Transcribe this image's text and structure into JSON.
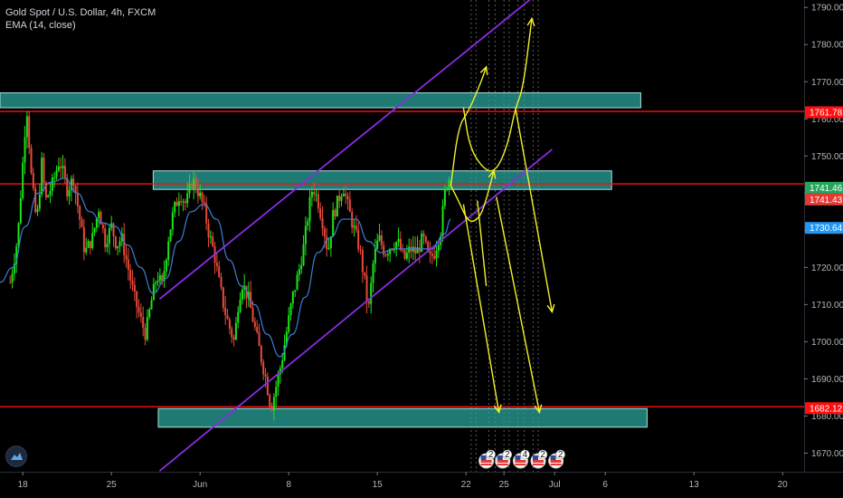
{
  "header": {
    "symbol": "Gold Spot / U.S. Dollar, 4h, FXCM",
    "indicator": "EMA (14, close)"
  },
  "colors": {
    "background": "#000000",
    "candle_up": "#19e619",
    "candle_down": "#e84a3a",
    "ema": "#3d7fd6",
    "level_line": "#ff0f0f",
    "zone_fill": "#2aa39b",
    "channel": "#8a2be2",
    "projection": "#f2f22a",
    "badge_green": "#26a65b",
    "badge_red": "#e53935",
    "badge_blue": "#2196f3"
  },
  "chart_data": {
    "type": "candlestick",
    "title": "Gold Spot / U.S. Dollar, 4h, FXCM",
    "indicator": "EMA (14, close)",
    "y_ticks": [
      1670,
      1680,
      1690,
      1700,
      1710,
      1720,
      1730,
      1740,
      1750,
      1760,
      1770,
      1780,
      1790
    ],
    "y_tick_labels": [
      "1670.00",
      "1680.00",
      "1690.00",
      "1700.00",
      "1710.00",
      "1720.00",
      "1730.00",
      "1740.00",
      "1750.00",
      "1760.00",
      "1770.00",
      "1780.00",
      "1790.00"
    ],
    "ylim": [
      1665,
      1792
    ],
    "x_ticks": [
      {
        "day": 18,
        "label": "18"
      },
      {
        "day": 25,
        "label": "25"
      },
      {
        "day": 32,
        "label": "Jun"
      },
      {
        "day": 39,
        "label": "8"
      },
      {
        "day": 46,
        "label": "15"
      },
      {
        "day": 53,
        "label": "22"
      },
      {
        "day": 56,
        "label": "25"
      },
      {
        "day": 60,
        "label": "Jul"
      },
      {
        "day": 64,
        "label": "6"
      },
      {
        "day": 71,
        "label": "13"
      },
      {
        "day": 78,
        "label": "20"
      }
    ],
    "xlim": [
      16.2,
      79.7
    ],
    "anchors": [
      [
        17.0,
        1716
      ],
      [
        17.6,
        1728
      ],
      [
        18.0,
        1748
      ],
      [
        18.3,
        1764
      ],
      [
        18.7,
        1743
      ],
      [
        19.1,
        1732
      ],
      [
        19.5,
        1748
      ],
      [
        19.8,
        1738
      ],
      [
        20.3,
        1742
      ],
      [
        20.9,
        1749
      ],
      [
        21.5,
        1741
      ],
      [
        22.0,
        1744
      ],
      [
        22.5,
        1733
      ],
      [
        22.9,
        1724
      ],
      [
        23.5,
        1728
      ],
      [
        24.0,
        1736
      ],
      [
        24.5,
        1727
      ],
      [
        25.0,
        1731
      ],
      [
        25.4,
        1726
      ],
      [
        25.8,
        1728
      ],
      [
        26.3,
        1720
      ],
      [
        26.8,
        1712
      ],
      [
        27.3,
        1706
      ],
      [
        27.7,
        1702
      ],
      [
        28.1,
        1710
      ],
      [
        28.6,
        1718
      ],
      [
        29.0,
        1715
      ],
      [
        29.5,
        1728
      ],
      [
        29.9,
        1735
      ],
      [
        30.4,
        1740
      ],
      [
        30.9,
        1737
      ],
      [
        31.4,
        1744
      ],
      [
        31.9,
        1740
      ],
      [
        32.3,
        1736
      ],
      [
        32.7,
        1729
      ],
      [
        33.1,
        1724
      ],
      [
        33.5,
        1716
      ],
      [
        33.9,
        1709
      ],
      [
        34.3,
        1704
      ],
      [
        34.7,
        1700
      ],
      [
        35.0,
        1710
      ],
      [
        35.3,
        1716
      ],
      [
        35.8,
        1712
      ],
      [
        36.3,
        1704
      ],
      [
        36.8,
        1696
      ],
      [
        37.2,
        1690
      ],
      [
        37.6,
        1682
      ],
      [
        38.0,
        1688
      ],
      [
        38.4,
        1694
      ],
      [
        38.8,
        1702
      ],
      [
        39.3,
        1712
      ],
      [
        39.8,
        1719
      ],
      [
        40.2,
        1726
      ],
      [
        40.6,
        1736
      ],
      [
        40.9,
        1742
      ],
      [
        41.3,
        1738
      ],
      [
        41.7,
        1732
      ],
      [
        42.1,
        1724
      ],
      [
        42.5,
        1734
      ],
      [
        42.9,
        1738
      ],
      [
        43.3,
        1742
      ],
      [
        43.7,
        1736
      ],
      [
        44.1,
        1731
      ],
      [
        44.6,
        1725
      ],
      [
        45.0,
        1716
      ],
      [
        45.3,
        1708
      ],
      [
        45.7,
        1722
      ],
      [
        46.1,
        1728
      ],
      [
        46.6,
        1724
      ],
      [
        47.1,
        1726
      ],
      [
        47.6,
        1727
      ],
      [
        48.1,
        1722
      ],
      [
        48.6,
        1725
      ],
      [
        49.1,
        1724
      ],
      [
        49.6,
        1728
      ],
      [
        50.1,
        1722
      ],
      [
        50.5,
        1724
      ],
      [
        51.0,
        1730
      ],
      [
        51.4,
        1742
      ],
      [
        51.8,
        1745
      ]
    ],
    "ema_anchors": [
      [
        16.2,
        1716
      ],
      [
        17.2,
        1720
      ],
      [
        18.2,
        1731
      ],
      [
        19.2,
        1740
      ],
      [
        20.3,
        1743
      ],
      [
        21.3,
        1744
      ],
      [
        22.3,
        1740
      ],
      [
        23.3,
        1735
      ],
      [
        24.3,
        1732
      ],
      [
        25.3,
        1731
      ],
      [
        26.3,
        1726
      ],
      [
        27.3,
        1720
      ],
      [
        28.3,
        1713
      ],
      [
        29.3,
        1717
      ],
      [
        30.3,
        1727
      ],
      [
        31.3,
        1735
      ],
      [
        32.3,
        1737
      ],
      [
        33.3,
        1733
      ],
      [
        34.3,
        1722
      ],
      [
        35.3,
        1715
      ],
      [
        36.3,
        1710
      ],
      [
        37.3,
        1702
      ],
      [
        38.3,
        1696
      ],
      [
        39.3,
        1702
      ],
      [
        40.3,
        1712
      ],
      [
        41.3,
        1724
      ],
      [
        42.3,
        1728
      ],
      [
        43.3,
        1733
      ],
      [
        44.3,
        1733
      ],
      [
        45.3,
        1727
      ],
      [
        46.3,
        1724
      ],
      [
        47.3,
        1725
      ],
      [
        48.3,
        1725
      ],
      [
        49.3,
        1725
      ],
      [
        50.3,
        1725
      ],
      [
        51.3,
        1729
      ],
      [
        51.8,
        1733
      ]
    ],
    "levels": [
      1762,
      1742.5,
      1682.5
    ],
    "zones": [
      {
        "day_from": 16.2,
        "day_to": 66.8,
        "low": 1763,
        "high": 1767
      },
      {
        "day_from": 28.3,
        "day_to": 64.5,
        "low": 1741,
        "high": 1746
      },
      {
        "day_from": 28.7,
        "day_to": 67.3,
        "low": 1677,
        "high": 1682
      }
    ],
    "channel_lines": [
      {
        "from": [
          28.8,
          1711.5
        ],
        "to": [
          58.2,
          1792.5
        ]
      },
      {
        "from": [
          28.8,
          1665.2
        ],
        "to": [
          59.8,
          1751.8
        ]
      }
    ],
    "projections": [
      {
        "path": [
          [
            51.8,
            1742
          ],
          [
            52.4,
            1738
          ],
          [
            53.2,
            1732
          ],
          [
            54.0,
            1733
          ],
          [
            54.5,
            1737
          ],
          [
            55.2,
            1746
          ]
        ],
        "arrow": true
      },
      {
        "path": [
          [
            51.8,
            1742
          ],
          [
            52.4,
            1758
          ],
          [
            53.2,
            1762
          ],
          [
            54.2,
            1770
          ],
          [
            54.6,
            1774
          ]
        ],
        "arrow": true
      },
      {
        "path": [
          [
            52.8,
            1763
          ],
          [
            53.3,
            1752
          ],
          [
            54.5,
            1746
          ],
          [
            55.4,
            1746
          ],
          [
            56.3,
            1753
          ],
          [
            56.9,
            1763
          ],
          [
            57.5,
            1768
          ],
          [
            58.2,
            1787
          ]
        ],
        "arrow": true
      },
      {
        "path": [
          [
            52.8,
            1737
          ],
          [
            55.6,
            1681
          ]
        ],
        "arrow": true
      },
      {
        "path": [
          [
            55.4,
            1739
          ],
          [
            58.8,
            1681
          ]
        ],
        "arrow": true
      },
      {
        "path": [
          [
            56.9,
            1763
          ],
          [
            59.8,
            1708
          ]
        ],
        "arrow": true
      },
      {
        "path": [
          [
            53.9,
            1738
          ],
          [
            54.6,
            1715
          ]
        ],
        "arrow": false
      }
    ],
    "dotted_columns": [
      53.4,
      53.8,
      54.8,
      55.3,
      56.0,
      56.4,
      57.1,
      57.6,
      58.3,
      58.7
    ],
    "price_badges": [
      {
        "value": 1761.78,
        "label": "1761.78",
        "color": "#ff0f0f"
      },
      {
        "value": 1741.46,
        "label": "1741.46",
        "color": "#26a65b"
      },
      {
        "value": 1741.43,
        "label": "1741.43",
        "color": "#e53935"
      },
      {
        "value": 1730.64,
        "label": "1730.64",
        "color": "#2196f3"
      },
      {
        "value": 1682.12,
        "label": "1682.12",
        "color": "#ff0f0f"
      }
    ],
    "event_badges": [
      {
        "day": 54.6,
        "label": "2"
      },
      {
        "day": 55.9,
        "label": "2"
      },
      {
        "day": 57.3,
        "label": "4"
      },
      {
        "day": 58.7,
        "label": "2"
      },
      {
        "day": 60.1,
        "label": "2"
      }
    ]
  }
}
